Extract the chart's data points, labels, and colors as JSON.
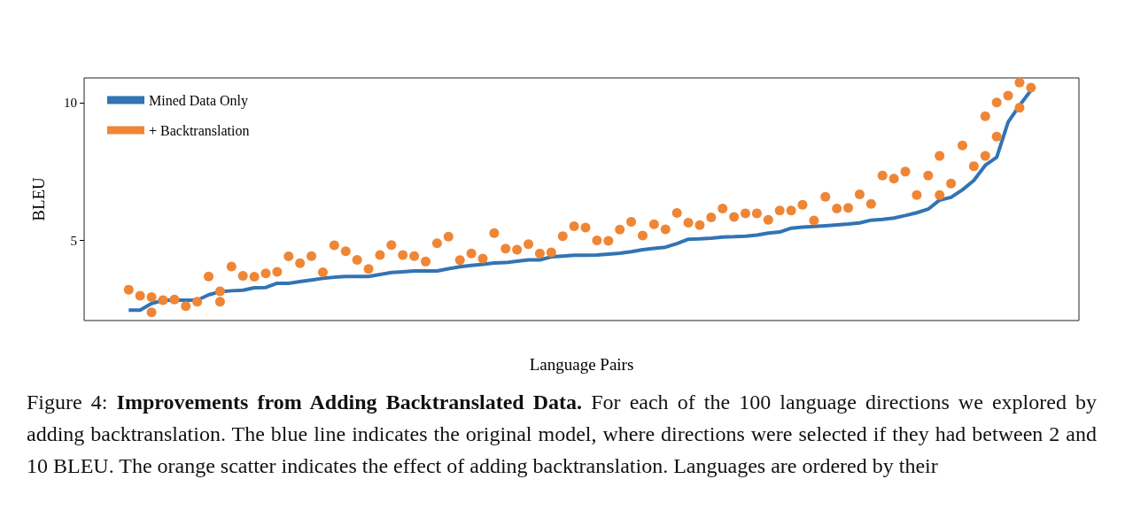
{
  "chart_data": {
    "type": "line",
    "xlabel": "Language Pairs",
    "ylabel": "BLEU",
    "categories": [
      null,
      null,
      null,
      null,
      null,
      null,
      null,
      null,
      null,
      null,
      null,
      null,
      null,
      null,
      null,
      null,
      null,
      null,
      null,
      null,
      null,
      null,
      null,
      null,
      null,
      null,
      null,
      null,
      null,
      null,
      null,
      null,
      null,
      null,
      null,
      null,
      null,
      null,
      null,
      null,
      null,
      null,
      null,
      null,
      null,
      null,
      null,
      null,
      null,
      null,
      null,
      null,
      null,
      null,
      null,
      null,
      null,
      null,
      null,
      null,
      null,
      null,
      null,
      null,
      null,
      null,
      null,
      null,
      null,
      null,
      null,
      null,
      null,
      null,
      null,
      null,
      null,
      null,
      null,
      null
    ],
    "series": [
      {
        "name": "Mined Data Only",
        "marker": "none",
        "color": "#3274b4",
        "values": [
          2.48,
          2.48,
          2.72,
          2.83,
          2.84,
          2.84,
          2.84,
          3.03,
          3.15,
          3.18,
          3.2,
          3.29,
          3.3,
          3.45,
          3.45,
          3.51,
          3.57,
          3.63,
          3.67,
          3.7,
          3.7,
          3.7,
          3.77,
          3.84,
          3.87,
          3.9,
          3.9,
          3.9,
          3.98,
          4.05,
          4.1,
          4.14,
          4.19,
          4.2,
          4.25,
          4.3,
          4.3,
          4.41,
          4.44,
          4.47,
          4.47,
          4.48,
          4.51,
          4.54,
          4.6,
          4.67,
          4.72,
          4.76,
          4.89,
          5.05,
          5.06,
          5.09,
          5.13,
          5.14,
          5.16,
          5.2,
          5.27,
          5.31,
          5.45,
          5.49,
          5.51,
          5.54,
          5.57,
          5.6,
          5.64,
          5.74,
          5.77,
          5.82,
          5.91,
          6.01,
          6.14,
          6.47,
          6.57,
          6.84,
          7.18,
          7.73,
          8.02,
          9.3,
          9.9,
          10.45
        ]
      },
      {
        "name": "+ Backtranslation",
        "type": "scatter",
        "marker": "circle",
        "color": "#ef8636",
        "values": [
          3.22,
          3.0,
          2.95,
          2.84,
          2.86,
          2.62,
          2.78,
          3.7,
          3.16,
          4.06,
          3.72,
          3.69,
          3.81,
          3.87,
          4.43,
          4.18,
          4.44,
          3.85,
          4.83,
          4.61,
          4.3,
          3.97,
          4.48,
          4.84,
          4.48,
          4.44,
          4.24,
          4.9,
          5.14,
          4.29,
          4.53,
          4.35,
          5.27,
          4.71,
          4.67,
          4.87,
          4.53,
          4.57,
          5.16,
          5.52,
          5.47,
          5.01,
          4.99,
          5.4,
          5.68,
          5.18,
          5.59,
          5.41,
          6.0,
          5.65,
          5.56,
          5.84,
          6.16,
          5.86,
          5.99,
          5.99,
          5.75,
          6.09,
          6.09,
          6.3,
          5.73,
          6.59,
          6.16,
          6.19,
          6.68,
          6.33,
          7.36,
          7.25,
          7.5,
          6.65,
          7.36,
          8.07,
          7.07,
          8.45,
          7.7,
          8.07,
          10.01,
          10.26,
          10.73,
          10.55
        ]
      },
      {
        "type": "scatter",
        "marker": "circle",
        "color": "#ef8636",
        "values": [
          null,
          null,
          2.4,
          null,
          null,
          null,
          null,
          null,
          2.78,
          null,
          null,
          null,
          null,
          null,
          null,
          null,
          null,
          null,
          null,
          null,
          null,
          null,
          null,
          null,
          null,
          null,
          null,
          null,
          null,
          null,
          null,
          null,
          null,
          null,
          null,
          null,
          null,
          null,
          null,
          null,
          null,
          null,
          null,
          null,
          null,
          null,
          null,
          null,
          null,
          null,
          null,
          null,
          null,
          null,
          null,
          null,
          null,
          null,
          null,
          null,
          null,
          null,
          null,
          null,
          null,
          null,
          null,
          null,
          null,
          null,
          null,
          6.65,
          null,
          null,
          null,
          9.51,
          8.77,
          null,
          9.82,
          null
        ]
      }
    ],
    "ylim": [
      2.1,
      10.9
    ],
    "yticks": [
      5,
      10
    ],
    "tick_labels": "y",
    "legend": "top left",
    "grid": false,
    "annotations": [
      "Figure 4:",
      "Improvements from Adding Backtranslated Data.",
      "For each of the 100 language directions we explored by adding backtranslation. The blue line indicates the original model, where directions were selected if they had between 2 and 10 BLEU. The orange scatter indicates the effect of adding backtranslation. Languages are ordered by their"
    ]
  }
}
